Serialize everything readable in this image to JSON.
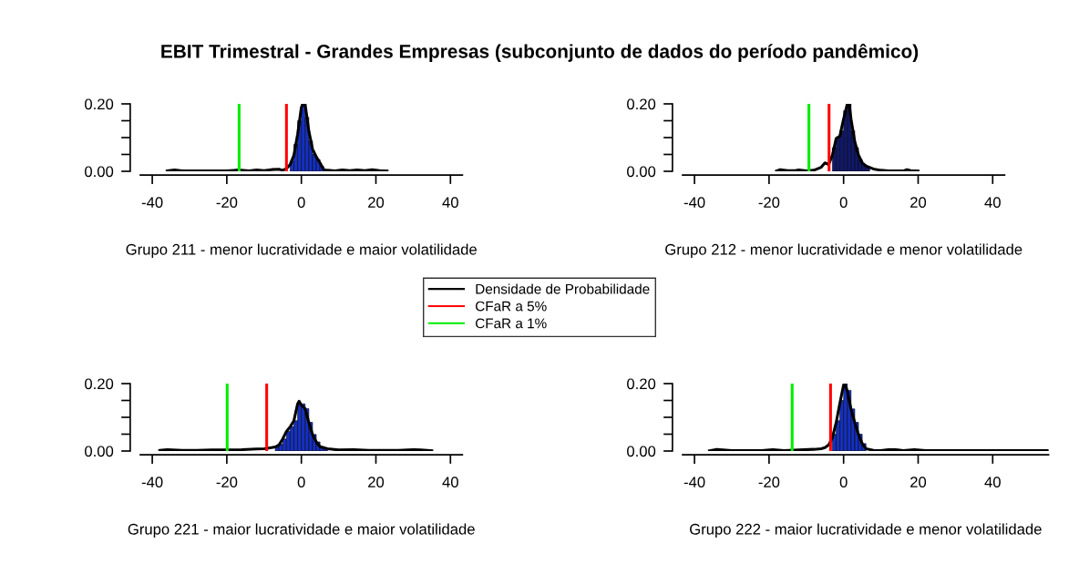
{
  "chart_data": [
    {
      "type": "histogram",
      "title": "EBIT Trimestral - Grandes Empresas (subconjunto de dados do período pandêmico)",
      "xlabel": "Grupo 211 - menor lucratividade e maior volatilidade",
      "bins": [
        -4,
        -3,
        -2,
        -1,
        0,
        1,
        2,
        3,
        4,
        5,
        6
      ],
      "values": [
        null,
        0.03,
        0.08,
        0.15,
        0.2,
        0.16,
        0.09,
        0.05,
        0.035,
        0.015
      ],
      "color": "#1530c0",
      "series": [
        {
          "name": "Densidade de Probabilidade",
          "type": "line",
          "color": "#000000",
          "x": [
            -36,
            -34,
            -32,
            -28,
            -24,
            -20,
            -17,
            -14,
            -12,
            -10,
            -8,
            -6,
            -5,
            -4,
            -3,
            -2,
            -1,
            0,
            0.5,
            1,
            2,
            3,
            4,
            5,
            6,
            7,
            9,
            11,
            13,
            15,
            17,
            19,
            21,
            23
          ],
          "values": [
            0.001,
            0.004,
            0.001,
            0.001,
            0.001,
            0.001,
            0.004,
            0.001,
            0.004,
            0.002,
            0.005,
            0.006,
            0.003,
            0.008,
            0.02,
            0.048,
            0.11,
            0.19,
            0.2,
            0.2,
            0.12,
            0.066,
            0.043,
            0.025,
            0.005,
            0.003,
            0.001,
            0.004,
            0.002,
            0.004,
            0.002,
            0.005,
            0.002,
            0.001
          ]
        }
      ],
      "xlim": [
        -43.2,
        43.2
      ],
      "ylim": [
        0,
        0.2
      ],
      "xticks": [
        -40,
        -20,
        0,
        20,
        40
      ],
      "yticks": [
        {
          "value": 0,
          "label": "0.00"
        },
        {
          "value": 0.05,
          "label": null
        },
        {
          "value": 0.1,
          "label": null
        },
        {
          "value": 0.15,
          "label": null
        },
        {
          "value": 0.2,
          "label": "0.20"
        }
      ],
      "ref_lines": [
        {
          "axis": "x",
          "value": -4.0,
          "label": "CFaR a 5%",
          "color": "#ff0000"
        },
        {
          "axis": "x",
          "value": -16.7,
          "label": "CFaR a 1%",
          "color": "#00ee00"
        }
      ],
      "legend": "center",
      "grid": false
    },
    {
      "type": "histogram",
      "xlabel": "Grupo 212 - menor lucratividade e menor volatilidade",
      "bins": [
        -4,
        -3,
        -2,
        -1,
        0,
        1,
        2,
        3,
        4,
        5,
        6,
        7
      ],
      "values": [
        null,
        0.07,
        0.1,
        0.12,
        0.18,
        0.2,
        0.12,
        0.07,
        0.035,
        0.02,
        0.012
      ],
      "color": "#10186a",
      "series": [
        {
          "type": "line",
          "color": "#000000",
          "x": [
            -18,
            -17,
            -15,
            -13,
            -12,
            -10,
            -8,
            -6,
            -5,
            -4,
            -3,
            -2,
            -1,
            0,
            1,
            1.5,
            2,
            3,
            4,
            5,
            6,
            8,
            10,
            12,
            14,
            16,
            17,
            18,
            20
          ],
          "values": [
            0.001,
            0.005,
            0.002,
            0.002,
            0.004,
            0.001,
            0.003,
            0.012,
            0.025,
            0.02,
            0.048,
            0.097,
            0.105,
            0.155,
            0.2,
            0.2,
            0.155,
            0.088,
            0.048,
            0.025,
            0.016,
            0.007,
            0.003,
            0.001,
            0.001,
            0.001,
            0.005,
            0.002,
            0.001
          ]
        }
      ],
      "xlim": [
        -43.2,
        43.2
      ],
      "ylim": [
        0,
        0.2
      ],
      "xticks": [
        -40,
        -20,
        0,
        20,
        40
      ],
      "yticks": [
        {
          "value": 0,
          "label": "0.00"
        },
        {
          "value": 0.05,
          "label": null
        },
        {
          "value": 0.1,
          "label": null
        },
        {
          "value": 0.15,
          "label": null
        },
        {
          "value": 0.2,
          "label": "0.20"
        }
      ],
      "ref_lines": [
        {
          "axis": "x",
          "value": -3.9,
          "color": "#ff0000"
        },
        {
          "axis": "x",
          "value": -9.3,
          "color": "#00ee00"
        }
      ],
      "grid": false
    },
    {
      "type": "histogram",
      "xlabel": "Grupo 221 - maior lucratividade e maior volatilidade",
      "bins": [
        -9,
        -8,
        -7,
        -6,
        -5,
        -4,
        -3,
        -2,
        -1,
        0,
        1,
        2,
        3,
        4,
        5,
        6,
        7
      ],
      "values": [
        null,
        null,
        0.012,
        0.02,
        0.036,
        0.058,
        0.072,
        0.09,
        0.14,
        0.14,
        0.126,
        0.085,
        0.049,
        0.027,
        0.013,
        0.008
      ],
      "color": "#1530c0",
      "series": [
        {
          "type": "line",
          "color": "#000000",
          "x": [
            -38,
            -36,
            -32,
            -28,
            -24,
            -20,
            -16,
            -12,
            -10,
            -8,
            -7,
            -6,
            -5,
            -4,
            -3,
            -2,
            -1,
            -0.6,
            0,
            1,
            2,
            3,
            4,
            5,
            7,
            10,
            14,
            18,
            22,
            26,
            30,
            32,
            35
          ],
          "values": [
            0.002,
            0.004,
            0.002,
            0.002,
            0.003,
            0.003,
            0.004,
            0.006,
            0.007,
            0.01,
            0.012,
            0.018,
            0.036,
            0.058,
            0.072,
            0.09,
            0.14,
            0.148,
            0.136,
            0.126,
            0.085,
            0.049,
            0.027,
            0.013,
            0.007,
            0.003,
            0.004,
            0.002,
            0.002,
            0.002,
            0.004,
            0.003,
            0.001
          ]
        }
      ],
      "xlim": [
        -43.2,
        43.2
      ],
      "ylim": [
        0,
        0.2
      ],
      "xticks": [
        -40,
        -20,
        0,
        20,
        40
      ],
      "yticks": [
        {
          "value": 0,
          "label": "0.00"
        },
        {
          "value": 0.05,
          "label": null
        },
        {
          "value": 0.1,
          "label": null
        },
        {
          "value": 0.15,
          "label": null
        },
        {
          "value": 0.2,
          "label": "0.20"
        }
      ],
      "ref_lines": [
        {
          "axis": "x",
          "value": -9.3,
          "color": "#ff0000"
        },
        {
          "axis": "x",
          "value": -19.9,
          "color": "#00ee00"
        }
      ],
      "grid": false
    },
    {
      "type": "histogram",
      "xlabel": "Grupo 222 - maior lucratividade e menor volatilidade",
      "bins": [
        -3,
        -2,
        -1,
        0,
        1,
        2,
        3,
        4,
        5,
        6
      ],
      "values": [
        0.05,
        0.09,
        0.15,
        0.2,
        0.18,
        0.125,
        0.085,
        0.05,
        0.022
      ],
      "color": "#1530c0",
      "series": [
        {
          "type": "line",
          "color": "#000000",
          "x": [
            -36,
            -34,
            -30,
            -26,
            -22,
            -19,
            -16,
            -12,
            -8,
            -6,
            -5,
            -4,
            -3,
            -2,
            -1,
            0,
            0.3,
            1,
            2,
            3,
            4,
            5,
            6,
            8,
            10,
            12,
            14,
            16,
            19,
            22,
            30,
            40,
            50,
            55
          ],
          "values": [
            0.001,
            0.005,
            0.001,
            0.001,
            0.001,
            0.004,
            0.001,
            0.003,
            0.005,
            0.007,
            0.01,
            0.018,
            0.04,
            0.084,
            0.142,
            0.196,
            0.2,
            0.178,
            0.124,
            0.084,
            0.049,
            0.022,
            0.007,
            0.002,
            0.001,
            0.004,
            0.004,
            0.001,
            0.004,
            0.001,
            0.001,
            0.001,
            0.001,
            0.001
          ]
        }
      ],
      "xlim": [
        -43.2,
        55
      ],
      "ylim": [
        0,
        0.2
      ],
      "xticks": [
        -40,
        -20,
        0,
        20,
        40
      ],
      "yticks": [
        {
          "value": 0,
          "label": "0.00"
        },
        {
          "value": 0.05,
          "label": null
        },
        {
          "value": 0.1,
          "label": null
        },
        {
          "value": 0.15,
          "label": null
        },
        {
          "value": 0.2,
          "label": "0.20"
        }
      ],
      "ref_lines": [
        {
          "axis": "x",
          "value": -3.5,
          "color": "#ff0000"
        },
        {
          "axis": "x",
          "value": -13.8,
          "color": "#00ee00"
        }
      ],
      "grid": false
    }
  ]
}
